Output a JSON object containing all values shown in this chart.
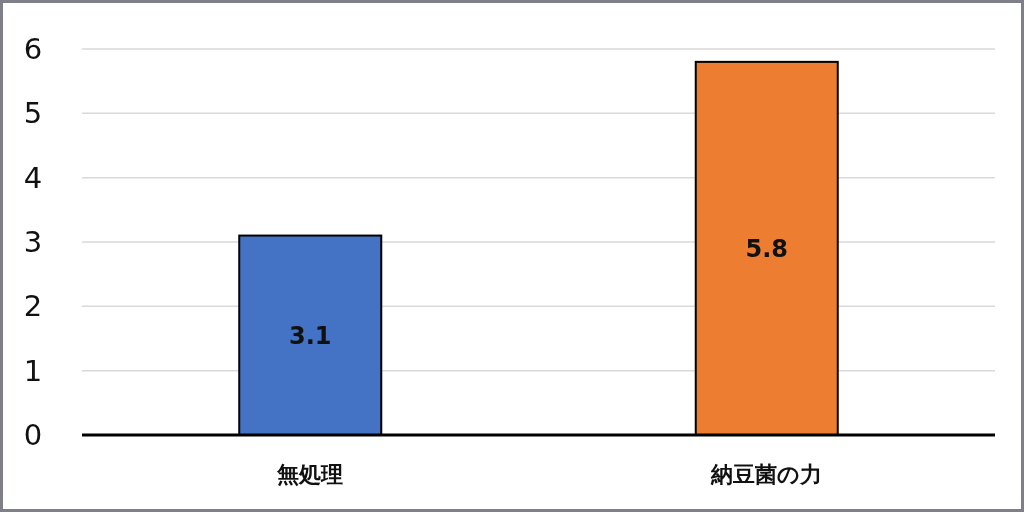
{
  "chart_data": {
    "type": "bar",
    "categories": [
      "無処理",
      "納豆菌の力"
    ],
    "values": [
      3.1,
      5.8
    ],
    "colors": [
      "#4472c4",
      "#ed7d31"
    ],
    "ylim": [
      0,
      6
    ],
    "yticks": [
      0,
      1,
      2,
      3,
      4,
      5,
      6
    ],
    "grid": "y",
    "data_labels": true
  }
}
